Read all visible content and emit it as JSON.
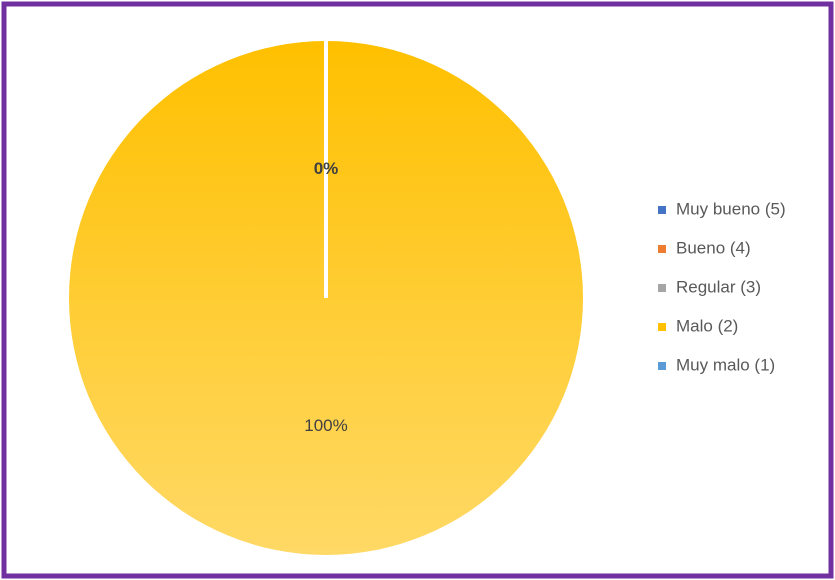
{
  "chart_data": {
    "type": "pie",
    "categories": [
      "Muy bueno (5)",
      "Bueno (4)",
      "Regular (3)",
      "Malo (2)",
      "Muy malo (1)"
    ],
    "values": [
      0,
      0,
      0,
      100,
      0
    ],
    "value_labels": [
      null,
      null,
      null,
      "100%",
      "0%"
    ],
    "colors": [
      "#4472c4",
      "#ed7d31",
      "#a5a5a5",
      "#ffc000",
      "#5b9bd5"
    ],
    "legend": "right"
  }
}
